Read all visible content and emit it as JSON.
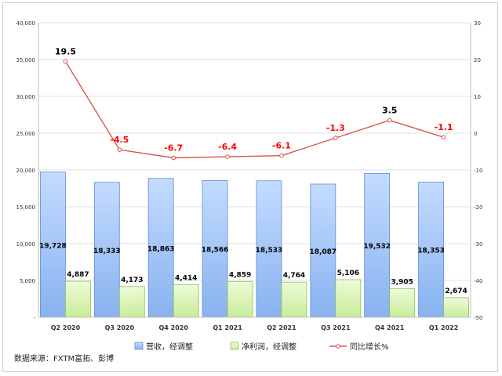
{
  "chart_data": {
    "type": "bar",
    "categories": [
      "Q2 2020",
      "Q3 2020",
      "Q4 2020",
      "Q1 2021",
      "Q2 2021",
      "Q3 2021",
      "Q4 2021",
      "Q1 2022"
    ],
    "series": [
      {
        "name": "营收，经调整",
        "type": "bar",
        "axis": "left",
        "values": [
          19728,
          18333,
          18863,
          18566,
          18533,
          18087,
          19532,
          18353
        ],
        "labels": [
          "19,728",
          "18,333",
          "18,863",
          "18,566",
          "18,533",
          "18,087",
          "19,532",
          "18,353"
        ]
      },
      {
        "name": "净利润，经调整",
        "type": "bar",
        "axis": "left",
        "values": [
          4887,
          4173,
          4414,
          4859,
          4764,
          5106,
          3905,
          2674
        ],
        "labels": [
          "4,887",
          "4,173",
          "4,414",
          "4,859",
          "4,764",
          "5,106",
          "3,905",
          "2,674"
        ]
      },
      {
        "name": "同比增长%",
        "type": "line",
        "axis": "right",
        "values": [
          19.5,
          -4.5,
          -6.7,
          -6.4,
          -6.1,
          -1.3,
          3.5,
          -1.1
        ],
        "labels": [
          "19.5",
          "-4.5",
          "-6.7",
          "-6.4",
          "-6.1",
          "-1.3",
          "3.5",
          "-1.1"
        ]
      }
    ],
    "y_left": {
      "lim": [
        0,
        40000
      ],
      "ticks": [
        "-",
        "5,000",
        "10,000",
        "15,000",
        "20,000",
        "25,000",
        "30,000",
        "35,000",
        "40,000"
      ]
    },
    "y_right": {
      "lim": [
        -50,
        30
      ],
      "ticks": [
        "-50",
        "-40",
        "-30",
        "-20",
        "-10",
        "0",
        "10",
        "20",
        "30"
      ]
    },
    "grid": true,
    "legend": "bottom",
    "colors": {
      "revenue": "#9dc3ff",
      "revenue_edge": "#5b8fd6",
      "profit": "#d8f5b0",
      "profit_edge": "#8cc05a",
      "line": "#d9534f",
      "positive_label": "#000000",
      "negative_label": "#ff0000"
    }
  },
  "source": "数据来源：FXTM富拓、彭博"
}
